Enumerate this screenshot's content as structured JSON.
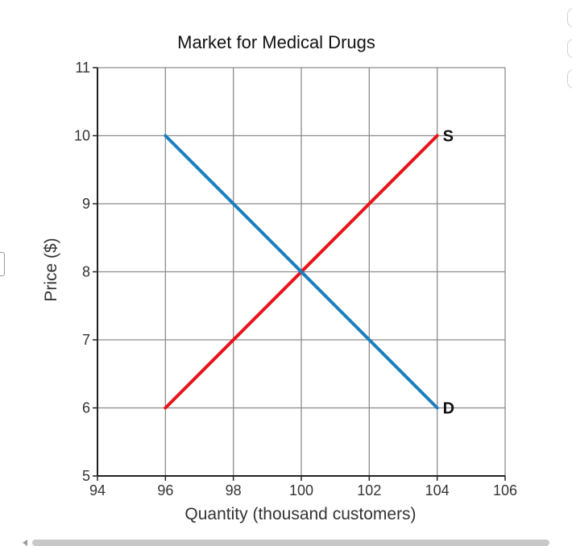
{
  "chart_data": {
    "type": "line",
    "title": "Market for Medical Drugs",
    "xlabel": "Quantity (thousand customers)",
    "ylabel": "Price ($)",
    "xlim": [
      94,
      106
    ],
    "ylim": [
      5,
      11
    ],
    "x_ticks": [
      "94",
      "96",
      "98",
      "100",
      "102",
      "104",
      "106"
    ],
    "y_ticks": [
      "5",
      "6",
      "7",
      "8",
      "9",
      "10",
      "11"
    ],
    "grid": true,
    "series": [
      {
        "name": "S",
        "color": "#e8141a",
        "x": [
          96,
          104
        ],
        "y": [
          6,
          10
        ]
      },
      {
        "name": "D",
        "color": "#1a7fbf",
        "x": [
          96,
          104
        ],
        "y": [
          10,
          6
        ]
      }
    ]
  }
}
